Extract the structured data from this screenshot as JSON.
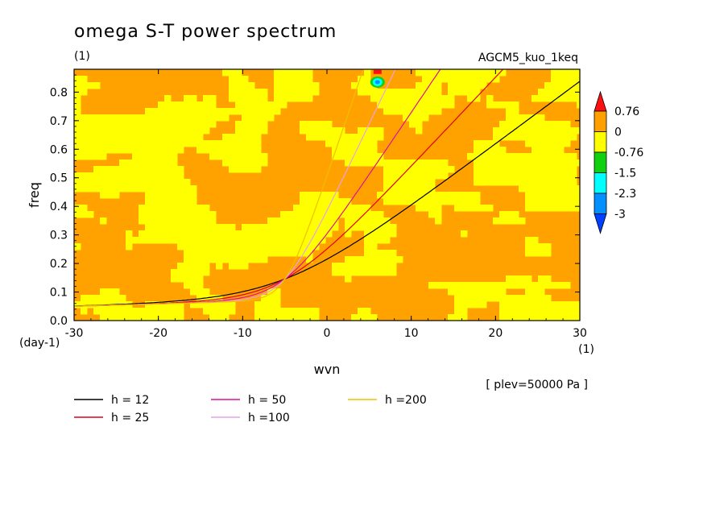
{
  "chart_data": {
    "type": "heatmap",
    "title": "omega S-T power spectrum",
    "title_units": "(1)",
    "experiment": "AGCM5_kuo_1keq",
    "xlabel": "wvn",
    "ylabel": "freq",
    "x_units": "(1)",
    "y_units": "(day-1)",
    "xlim": [
      -30,
      30
    ],
    "ylim": [
      0,
      0.88
    ],
    "x_ticks": [
      -30,
      -20,
      -10,
      0,
      10,
      20,
      30
    ],
    "x_tick_labels": [
      "-30",
      "-20",
      "-10",
      "0",
      "10",
      "20",
      "30"
    ],
    "y_ticks": [
      0.0,
      0.1,
      0.2,
      0.3,
      0.4,
      0.5,
      0.6,
      0.7,
      0.8
    ],
    "y_tick_labels": [
      "0.0",
      "0.1",
      "0.2",
      "0.3",
      "0.4",
      "0.5",
      "0.6",
      "0.7",
      "0.8"
    ],
    "level_note": "[ plev=50000 Pa ]",
    "colorbar": {
      "labels": [
        "0.76",
        "0",
        "-0.76",
        "-1.5",
        "-2.3",
        "-3"
      ],
      "colors": [
        "#ff1010",
        "#ff9f00",
        "#ffff00",
        "#10d010",
        "#00ffff",
        "#0090ff",
        "#0040ff"
      ]
    },
    "field_colors": {
      "low": "#ffff00",
      "high": "#ffa200"
    },
    "anomaly": {
      "wvn": 6,
      "freq": 0.835,
      "note": "small negative spot"
    },
    "series": [
      {
        "name": "h = 12",
        "label": "h = 12",
        "h": 12,
        "color": "#000000"
      },
      {
        "name": "h = 25",
        "label": "h = 25",
        "h": 25,
        "color": "#e0001a"
      },
      {
        "name": "h = 50",
        "label": "h = 50",
        "h": 50,
        "color": "#e0109a"
      },
      {
        "name": "h = 100",
        "label": "h =100",
        "h": 100,
        "color": "#e8a0e8"
      },
      {
        "name": "h = 200",
        "label": "h =200",
        "h": 200,
        "color": "#f0c000"
      }
    ]
  }
}
